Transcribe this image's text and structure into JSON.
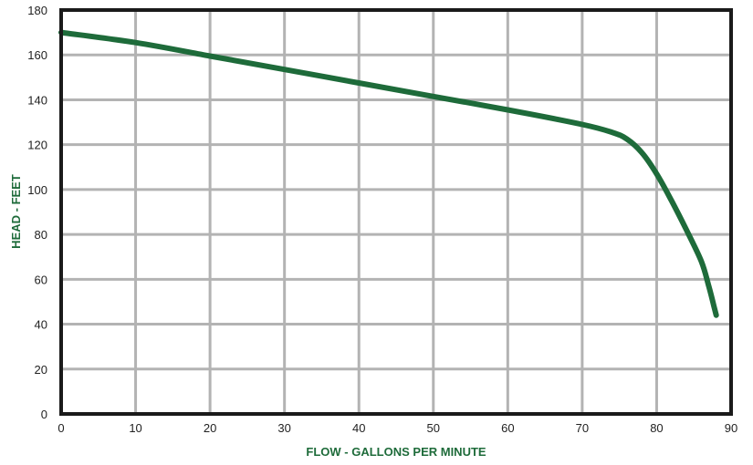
{
  "chart_data": {
    "type": "line",
    "xlabel": "FLOW - GALLONS PER MINUTE",
    "ylabel": "HEAD - FEET",
    "xlim": [
      0,
      90
    ],
    "ylim": [
      0,
      180
    ],
    "x_ticks": [
      0,
      10,
      20,
      30,
      40,
      50,
      60,
      70,
      80,
      90
    ],
    "y_ticks": [
      0,
      20,
      40,
      60,
      80,
      100,
      120,
      140,
      160,
      180
    ],
    "grid": true,
    "legend": "none",
    "series": [
      {
        "color": "#1e6b3a",
        "points": [
          [
            0,
            170
          ],
          [
            10,
            165.5
          ],
          [
            20,
            159.5
          ],
          [
            30,
            153.5
          ],
          [
            40,
            147.5
          ],
          [
            50,
            141.5
          ],
          [
            60,
            135.5
          ],
          [
            70,
            129
          ],
          [
            74,
            125.5
          ],
          [
            76,
            122.5
          ],
          [
            78,
            116.5
          ],
          [
            80,
            107
          ],
          [
            82,
            95
          ],
          [
            84,
            82
          ],
          [
            86,
            68
          ],
          [
            87,
            57
          ],
          [
            87.7,
            48
          ],
          [
            88,
            44
          ]
        ]
      }
    ],
    "colors": {
      "grid": "#b3b3b3",
      "frame": "#1a1a1a",
      "axis_title": "#1e6b3a",
      "tick_text": "#222222"
    }
  }
}
